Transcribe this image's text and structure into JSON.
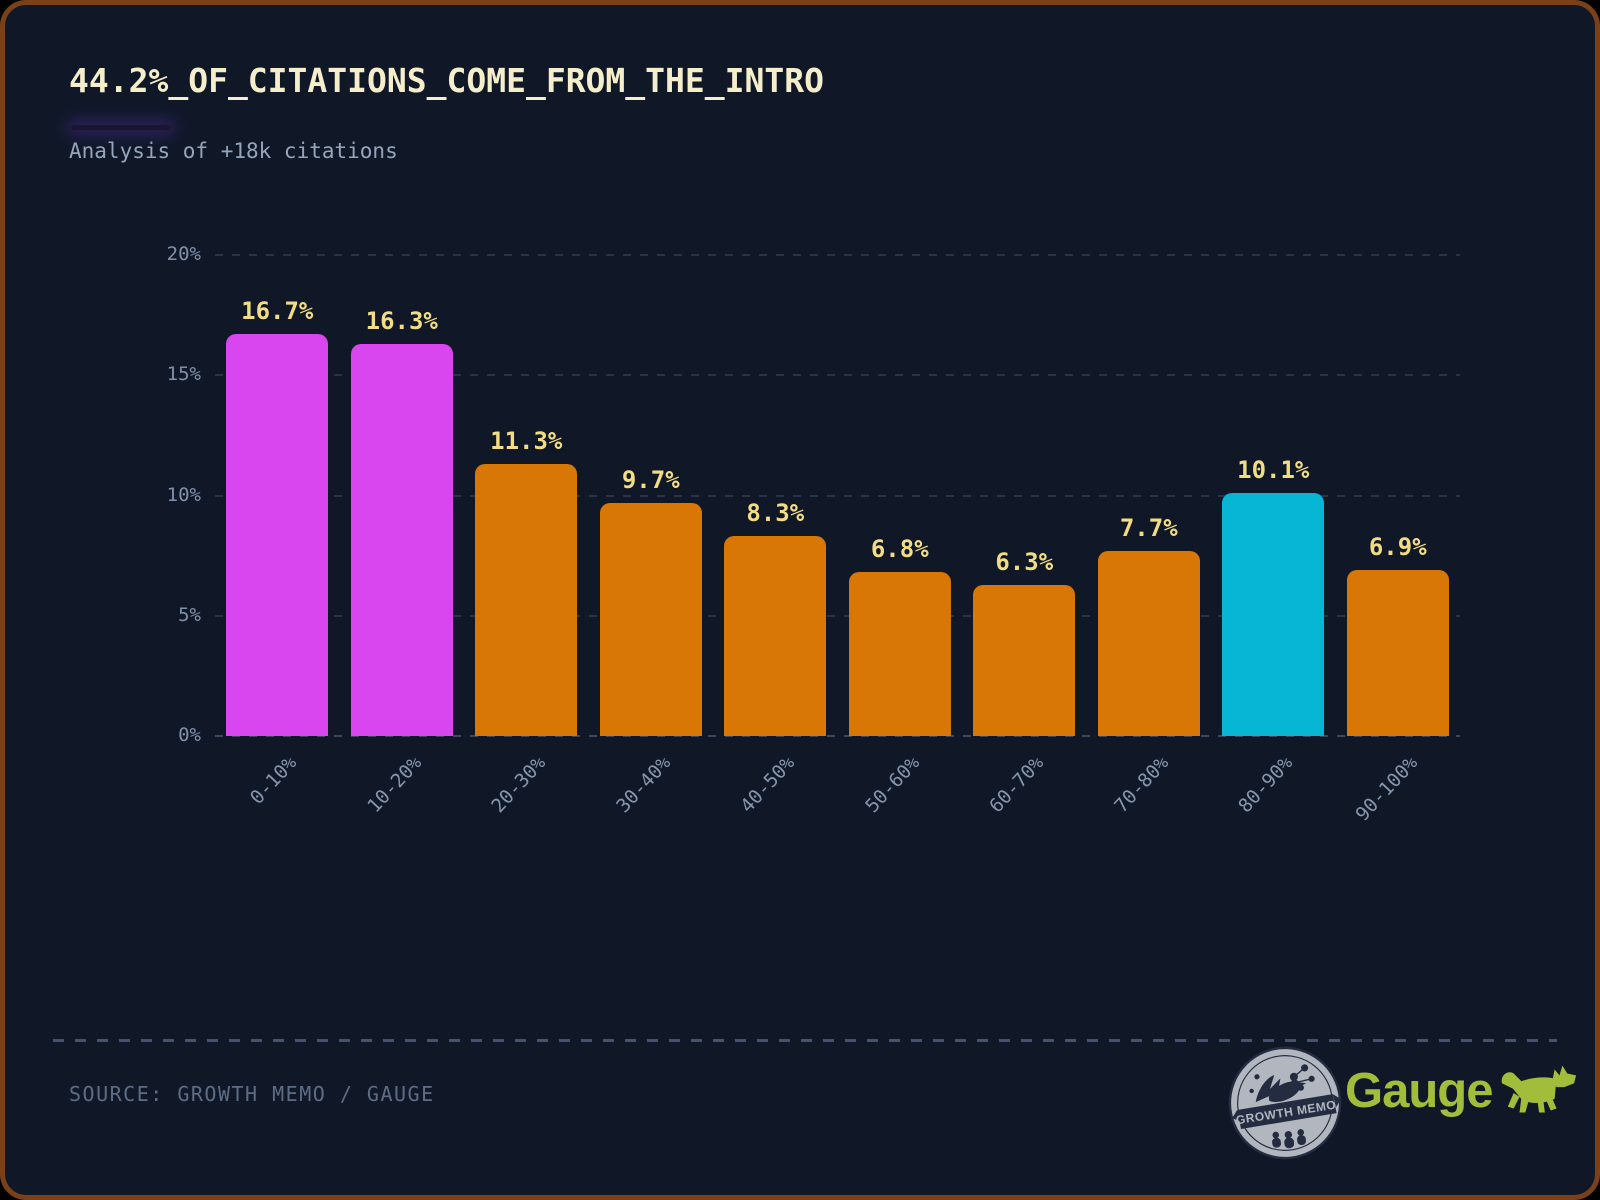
{
  "header": {
    "title": "44.2%_OF_CITATIONS_COME_FROM_THE_INTRO",
    "subtitle": "Analysis of +18k citations"
  },
  "chart_data": {
    "type": "bar",
    "title": "44.2%_OF_CITATIONS_COME_FROM_THE_INTRO",
    "subtitle": "Analysis of +18k citations",
    "categories": [
      "0-10%",
      "10-20%",
      "20-30%",
      "30-40%",
      "40-50%",
      "50-60%",
      "60-70%",
      "70-80%",
      "80-90%",
      "90-100%"
    ],
    "values": [
      16.7,
      16.3,
      11.3,
      9.7,
      8.3,
      6.8,
      6.3,
      7.7,
      10.1,
      6.9
    ],
    "value_labels": [
      "16.7%",
      "16.3%",
      "11.3%",
      "9.7%",
      "8.3%",
      "6.8%",
      "6.3%",
      "7.7%",
      "10.1%",
      "6.9%"
    ],
    "bar_colors": [
      "#d946ef",
      "#d946ef",
      "#d97706",
      "#d97706",
      "#d97706",
      "#d97706",
      "#d97706",
      "#d97706",
      "#06b6d4",
      "#d97706"
    ],
    "xlabel": "",
    "ylabel": "",
    "ylim": [
      0,
      20
    ],
    "yticks": [
      0,
      5,
      10,
      15,
      20
    ],
    "ytick_labels": [
      "0%",
      "5%",
      "10%",
      "15%",
      "20%"
    ],
    "grid": "horizontal-dashed",
    "legend": "none"
  },
  "footer": {
    "source": "SOURCE: GROWTH MEMO / GAUGE",
    "badge_text": "GROWTH MEMO",
    "gauge_label": "Gauge"
  },
  "colors": {
    "background": "#101828",
    "frame_border": "#7a4119",
    "title_text": "#f5eecb",
    "subtitle_text": "#97a5bb",
    "magenta_bar": "#d946ef",
    "orange_bar": "#d97706",
    "cyan_bar": "#06b6d4",
    "value_label": "#f2dd85",
    "axis_text": "#8191a9",
    "gauge_green": "#a2bd3a",
    "accent_glow": "#7c3aed"
  }
}
